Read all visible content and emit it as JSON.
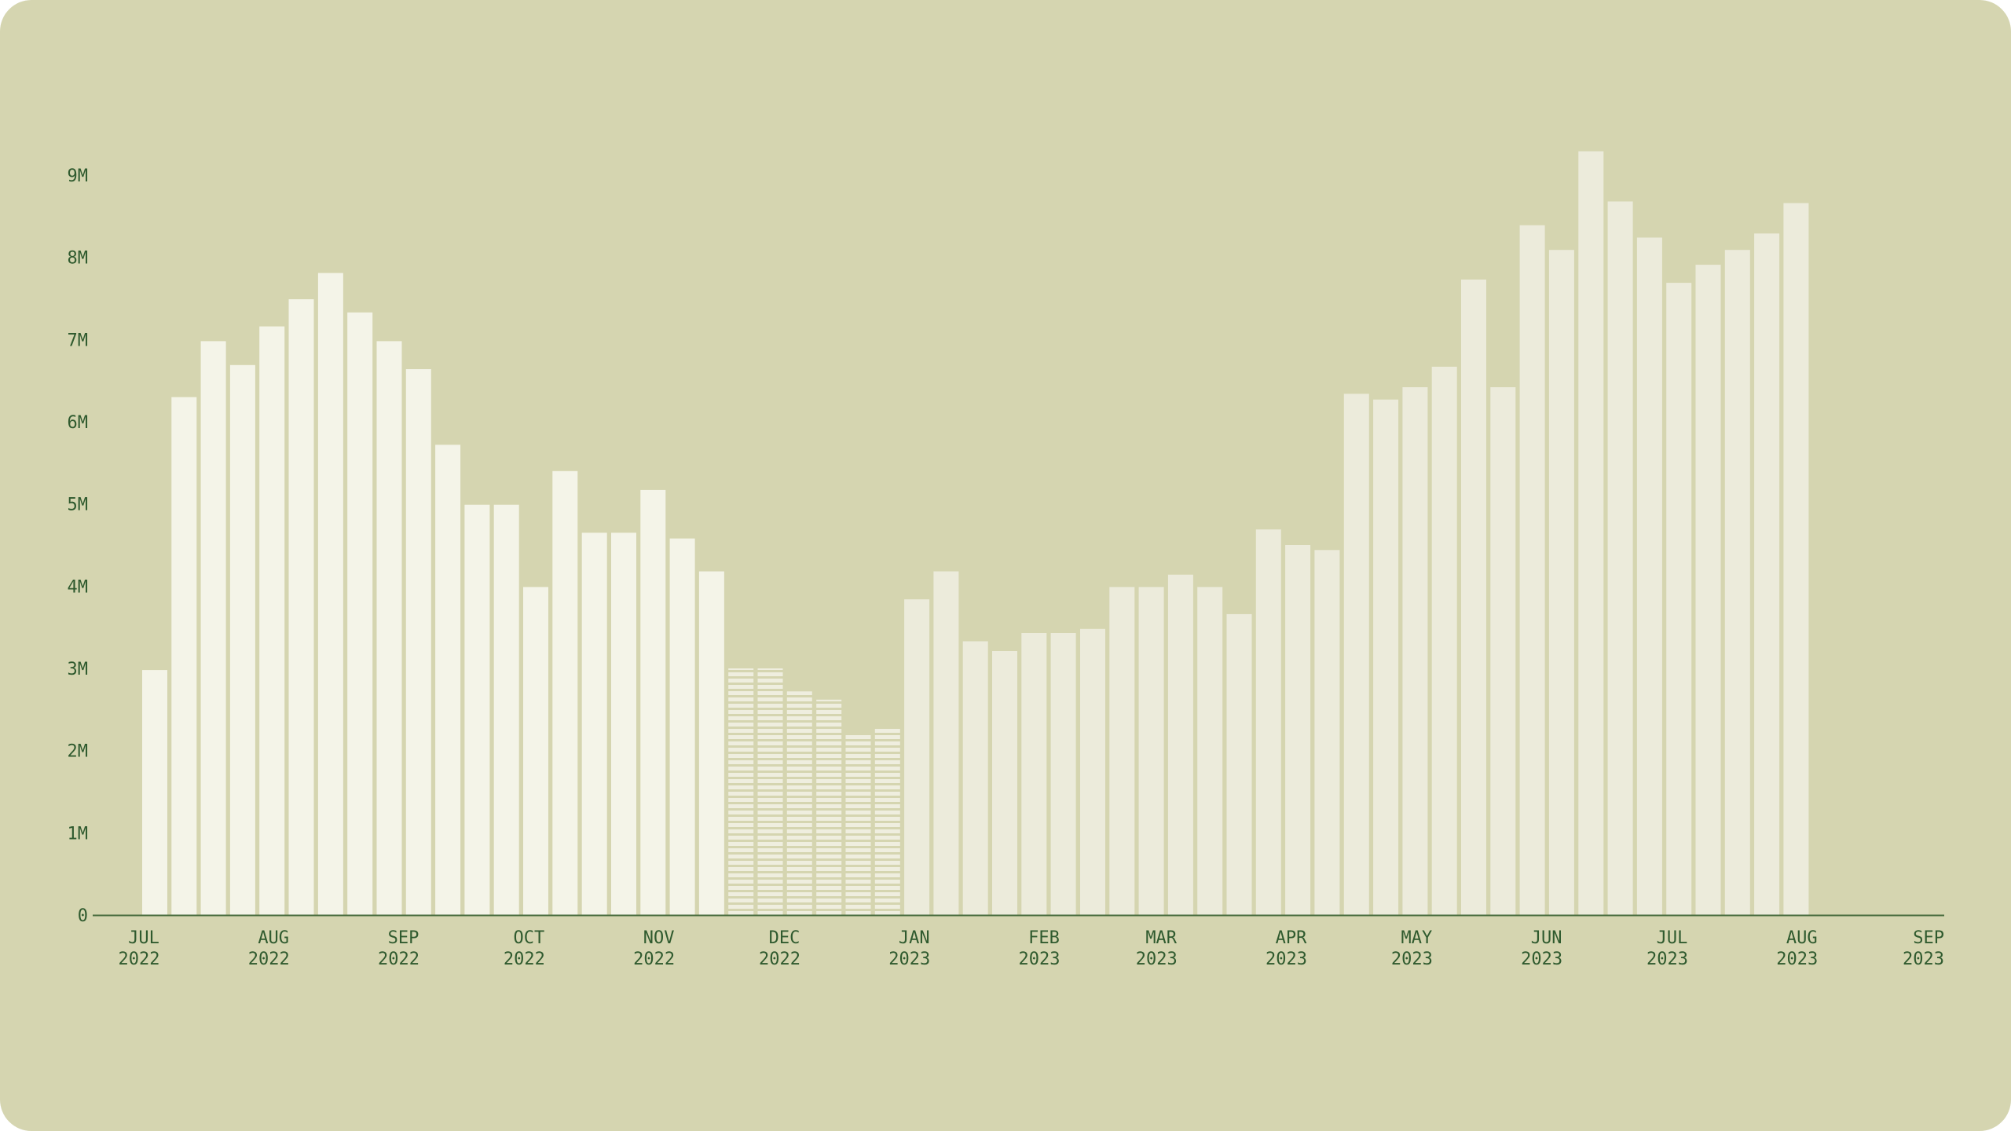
{
  "colors": {
    "background": "#d5d5b0",
    "bar_early": "#f4f4e8",
    "bar_late": "#ecebdb",
    "bar_hatched": "#efeedf",
    "axis": "#466a3c",
    "text": "#2f5a2e"
  },
  "chart_data": {
    "type": "bar",
    "title": "",
    "xlabel": "",
    "ylabel": "",
    "ylim": [
      0,
      9000000
    ],
    "grid": false,
    "legend": "none",
    "y_ticks": [
      {
        "value": 0,
        "label": "0"
      },
      {
        "value": 1000000,
        "label": "1M"
      },
      {
        "value": 2000000,
        "label": "2M"
      },
      {
        "value": 3000000,
        "label": "3M"
      },
      {
        "value": 4000000,
        "label": "4M"
      },
      {
        "value": 5000000,
        "label": "5M"
      },
      {
        "value": 6000000,
        "label": "6M"
      },
      {
        "value": 7000000,
        "label": "7M"
      },
      {
        "value": 8000000,
        "label": "8M"
      },
      {
        "value": 9000000,
        "label": "9M"
      }
    ],
    "x_ticks": [
      {
        "date": "2022-07-01",
        "month": "JUL",
        "year": "2022"
      },
      {
        "date": "2022-08-01",
        "month": "AUG",
        "year": "2022"
      },
      {
        "date": "2022-09-01",
        "month": "SEP",
        "year": "2022"
      },
      {
        "date": "2022-10-01",
        "month": "OCT",
        "year": "2022"
      },
      {
        "date": "2022-11-01",
        "month": "NOV",
        "year": "2022"
      },
      {
        "date": "2022-12-01",
        "month": "DEC",
        "year": "2022"
      },
      {
        "date": "2023-01-01",
        "month": "JAN",
        "year": "2023"
      },
      {
        "date": "2023-02-01",
        "month": "FEB",
        "year": "2023"
      },
      {
        "date": "2023-03-01",
        "month": "MAR",
        "year": "2023"
      },
      {
        "date": "2023-04-01",
        "month": "APR",
        "year": "2023"
      },
      {
        "date": "2023-05-01",
        "month": "MAY",
        "year": "2023"
      },
      {
        "date": "2023-06-01",
        "month": "JUN",
        "year": "2023"
      },
      {
        "date": "2023-07-01",
        "month": "JUL",
        "year": "2023"
      },
      {
        "date": "2023-08-01",
        "month": "AUG",
        "year": "2023"
      },
      {
        "date": "2023-09-01",
        "month": "SEP",
        "year": "2023"
      }
    ],
    "bars": [
      {
        "date": "2022-07-03",
        "value": 2980000,
        "style": "early"
      },
      {
        "date": "2022-07-10",
        "value": 6300000,
        "style": "early"
      },
      {
        "date": "2022-07-17",
        "value": 6980000,
        "style": "early"
      },
      {
        "date": "2022-07-24",
        "value": 6690000,
        "style": "early"
      },
      {
        "date": "2022-07-31",
        "value": 7160000,
        "style": "early"
      },
      {
        "date": "2022-08-07",
        "value": 7490000,
        "style": "early"
      },
      {
        "date": "2022-08-14",
        "value": 7810000,
        "style": "early"
      },
      {
        "date": "2022-08-21",
        "value": 7330000,
        "style": "early"
      },
      {
        "date": "2022-08-28",
        "value": 6980000,
        "style": "early"
      },
      {
        "date": "2022-09-04",
        "value": 6640000,
        "style": "early"
      },
      {
        "date": "2022-09-11",
        "value": 5720000,
        "style": "early"
      },
      {
        "date": "2022-09-18",
        "value": 4990000,
        "style": "early"
      },
      {
        "date": "2022-09-25",
        "value": 4990000,
        "style": "early"
      },
      {
        "date": "2022-10-02",
        "value": 3990000,
        "style": "early"
      },
      {
        "date": "2022-10-09",
        "value": 5400000,
        "style": "early"
      },
      {
        "date": "2022-10-16",
        "value": 4650000,
        "style": "early"
      },
      {
        "date": "2022-10-23",
        "value": 4650000,
        "style": "early"
      },
      {
        "date": "2022-10-30",
        "value": 5170000,
        "style": "early"
      },
      {
        "date": "2022-11-06",
        "value": 4580000,
        "style": "early"
      },
      {
        "date": "2022-11-13",
        "value": 4180000,
        "style": "early"
      },
      {
        "date": "2022-11-20",
        "value": 3000000,
        "style": "hatched"
      },
      {
        "date": "2022-11-27",
        "value": 3000000,
        "style": "hatched"
      },
      {
        "date": "2022-12-04",
        "value": 2720000,
        "style": "hatched"
      },
      {
        "date": "2022-12-11",
        "value": 2620000,
        "style": "hatched"
      },
      {
        "date": "2022-12-18",
        "value": 2190000,
        "style": "hatched"
      },
      {
        "date": "2022-12-25",
        "value": 2290000,
        "style": "hatched"
      },
      {
        "date": "2023-01-01",
        "value": 3840000,
        "style": "late"
      },
      {
        "date": "2023-01-08",
        "value": 4180000,
        "style": "late"
      },
      {
        "date": "2023-01-15",
        "value": 3330000,
        "style": "late"
      },
      {
        "date": "2023-01-22",
        "value": 3210000,
        "style": "late"
      },
      {
        "date": "2023-01-29",
        "value": 3430000,
        "style": "late"
      },
      {
        "date": "2023-02-05",
        "value": 3430000,
        "style": "late"
      },
      {
        "date": "2023-02-12",
        "value": 3480000,
        "style": "late"
      },
      {
        "date": "2023-02-19",
        "value": 3990000,
        "style": "late"
      },
      {
        "date": "2023-02-26",
        "value": 3990000,
        "style": "late"
      },
      {
        "date": "2023-03-05",
        "value": 4140000,
        "style": "late"
      },
      {
        "date": "2023-03-12",
        "value": 3990000,
        "style": "late"
      },
      {
        "date": "2023-03-19",
        "value": 3660000,
        "style": "late"
      },
      {
        "date": "2023-03-26",
        "value": 4690000,
        "style": "late"
      },
      {
        "date": "2023-04-02",
        "value": 4500000,
        "style": "late"
      },
      {
        "date": "2023-04-09",
        "value": 4440000,
        "style": "late"
      },
      {
        "date": "2023-04-16",
        "value": 6340000,
        "style": "late"
      },
      {
        "date": "2023-04-23",
        "value": 6270000,
        "style": "late"
      },
      {
        "date": "2023-04-30",
        "value": 6420000,
        "style": "late"
      },
      {
        "date": "2023-05-07",
        "value": 6670000,
        "style": "late"
      },
      {
        "date": "2023-05-14",
        "value": 7730000,
        "style": "late"
      },
      {
        "date": "2023-05-21",
        "value": 6420000,
        "style": "late"
      },
      {
        "date": "2023-05-28",
        "value": 8390000,
        "style": "late"
      },
      {
        "date": "2023-06-04",
        "value": 8090000,
        "style": "late"
      },
      {
        "date": "2023-06-11",
        "value": 9290000,
        "style": "late"
      },
      {
        "date": "2023-06-18",
        "value": 8680000,
        "style": "late"
      },
      {
        "date": "2023-06-25",
        "value": 8240000,
        "style": "late"
      },
      {
        "date": "2023-07-02",
        "value": 7690000,
        "style": "late"
      },
      {
        "date": "2023-07-09",
        "value": 7910000,
        "style": "late"
      },
      {
        "date": "2023-07-16",
        "value": 8090000,
        "style": "late"
      },
      {
        "date": "2023-07-23",
        "value": 8290000,
        "style": "late"
      },
      {
        "date": "2023-07-30",
        "value": 8660000,
        "style": "late"
      }
    ]
  }
}
